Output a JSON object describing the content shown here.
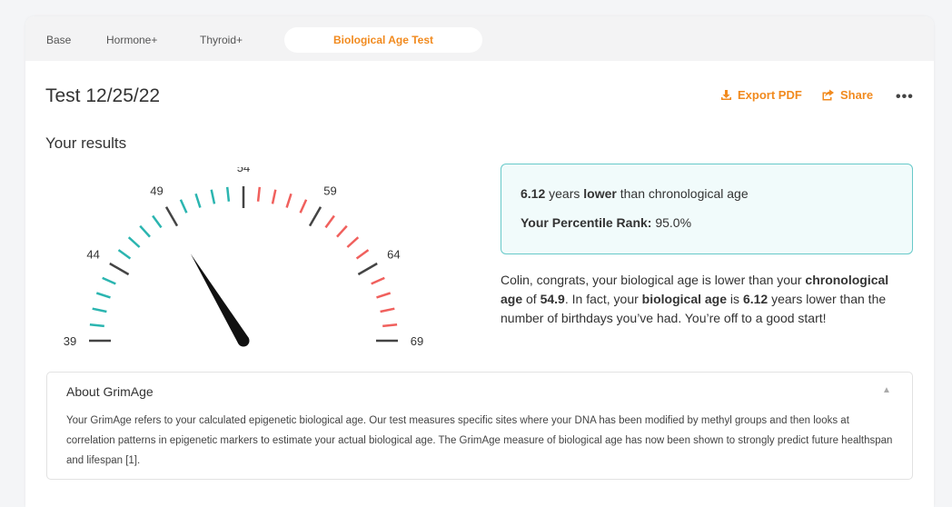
{
  "tabs": [
    {
      "label": "Base",
      "active": false
    },
    {
      "label": "Hormone+",
      "active": false
    },
    {
      "label": "Thyroid+",
      "active": false
    },
    {
      "label": "Biological Age Test",
      "active": true
    }
  ],
  "page": {
    "title": "Test 12/25/22",
    "export_label": "Export PDF",
    "share_label": "Share",
    "more_label": "•••",
    "subtitle": "Your results"
  },
  "gauge": {
    "min": 39,
    "max": 69,
    "value": 48.78,
    "tick_labels": [
      "39",
      "44",
      "49",
      "54",
      "59",
      "64",
      "69"
    ],
    "colors": {
      "lower": "#2bb5b0",
      "higher": "#f0605d",
      "major": "#444444",
      "needle": "#111111"
    }
  },
  "result": {
    "years": "6.12",
    "years_suffix": "years",
    "direction": "lower",
    "comparison_suffix": "than chronological age",
    "percentile_label": "Your Percentile Rank:",
    "percentile_value": "95.0%"
  },
  "summary": {
    "p1": "Colin, congrats, your biological age is lower than your",
    "chrono_label": "chronological age",
    "p2": "of",
    "chrono_value": "54.9",
    "p3": ". In fact, your",
    "bio_label": "biological age",
    "p4": "is",
    "bio_value": "6.12",
    "p5": "years lower than the number of birthdays you’ve had. You’re off to a good start!"
  },
  "about": {
    "title": "About GrimAge",
    "body": "Your GrimAge refers to your calculated epigenetic biological age. Our test measures specific sites where your DNA has been modified by methyl groups and then looks at correlation patterns in epigenetic markers to estimate your actual biological age. The GrimAge measure of biological age has now been shown to strongly predict future healthspan and lifespan [1]."
  },
  "colors": {
    "accent": "#f18a1e",
    "teal": "#2bb5b0",
    "red": "#f0605d"
  }
}
